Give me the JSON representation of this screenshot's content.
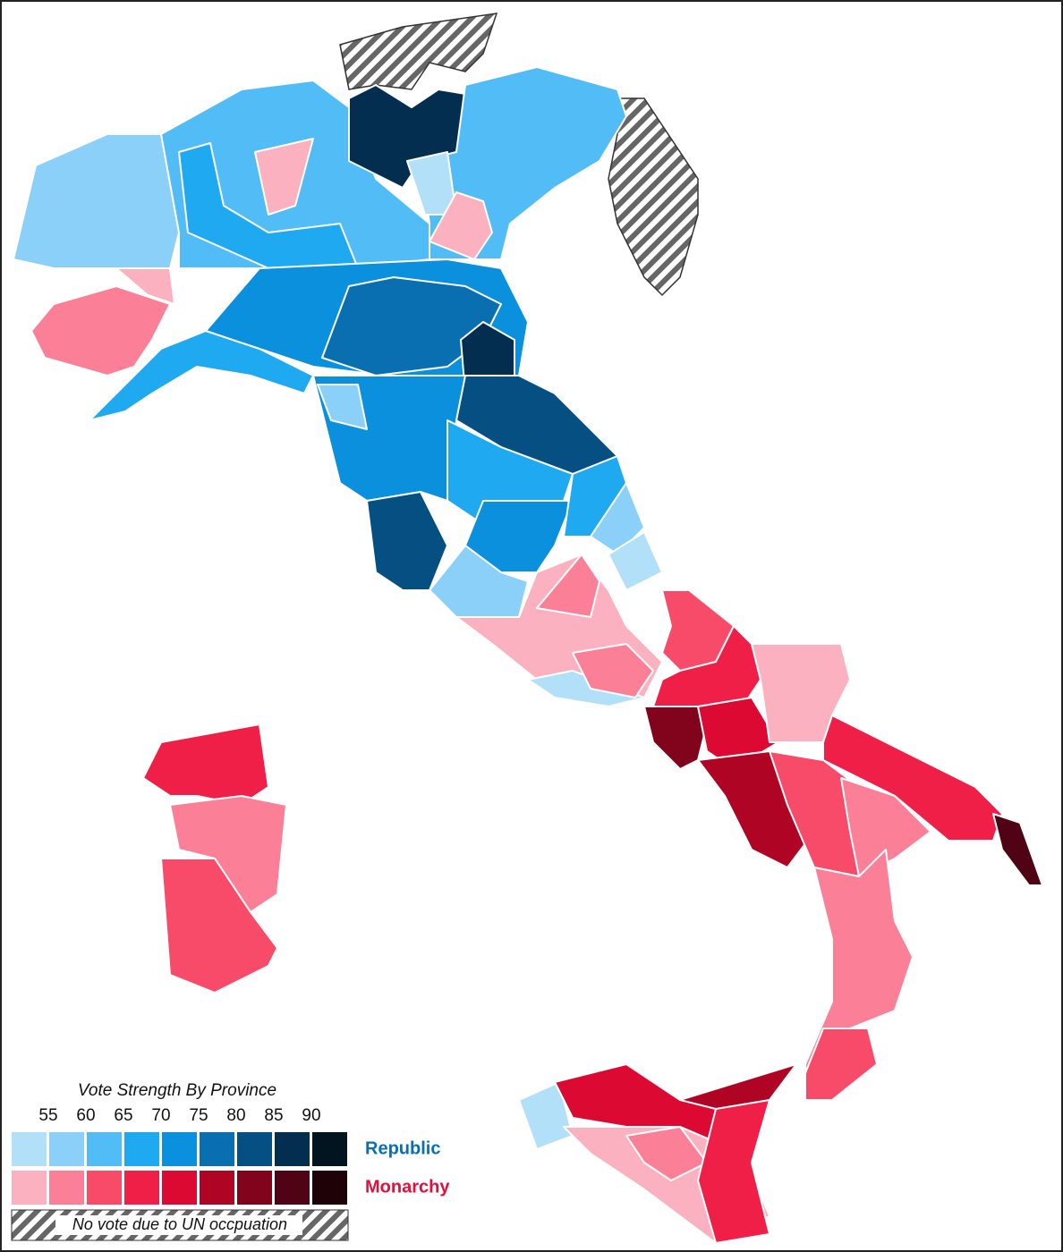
{
  "legend": {
    "title": "Vote Strength By Province",
    "ticks": [
      55,
      60,
      65,
      70,
      75,
      80,
      85,
      90
    ],
    "rows": [
      {
        "name": "Republic",
        "color": "#0a6fb0",
        "swatches": [
          "#b3e0f9",
          "#8ad0f9",
          "#52bcf7",
          "#1ea9f0",
          "#0a90dc",
          "#0a6fb0",
          "#064f82",
          "#042e4f",
          "#01141f"
        ]
      },
      {
        "name": "Monarchy",
        "color": "#e0103c",
        "swatches": [
          "#fbb1c0",
          "#fb7f97",
          "#f84a69",
          "#f01f47",
          "#dc0a33",
          "#b00425",
          "#82041c",
          "#4f0314",
          "#1f0108"
        ]
      }
    ],
    "no_vote": "No vote due to UN occpuation"
  }
}
